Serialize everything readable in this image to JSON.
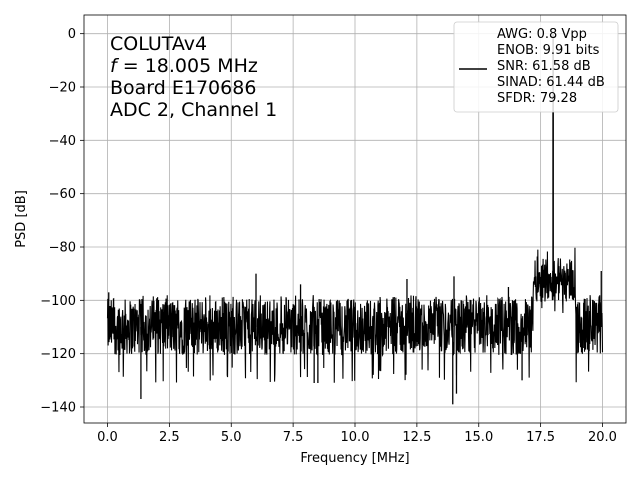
{
  "chart_data": {
    "type": "line",
    "xlabel": "Frequency [MHz]",
    "ylabel": "PSD [dB]",
    "xlim": [
      -0.95,
      20.95
    ],
    "ylim": [
      -146,
      7
    ],
    "x_ticks": [
      0.0,
      2.5,
      5.0,
      7.5,
      10.0,
      12.5,
      15.0,
      17.5,
      20.0
    ],
    "x_tick_labels": [
      "0.0",
      "2.5",
      "5.0",
      "7.5",
      "10.0",
      "12.5",
      "15.0",
      "17.5",
      "20.0"
    ],
    "y_ticks": [
      0,
      -20,
      -40,
      -60,
      -80,
      -100,
      -120,
      -140
    ],
    "y_tick_labels": [
      "0",
      "−20",
      "−40",
      "−60",
      "−80",
      "−100",
      "−120",
      "−140"
    ],
    "grid": true,
    "legend_position": "top-right",
    "series": [
      {
        "color": "#000000",
        "noise_floor_db": -110,
        "noise_band_db": [
          -125,
          -100
        ],
        "bump_range_mhz": [
          17.2,
          18.9
        ],
        "bump_level_db": -92,
        "peak": {
          "x": 18.005,
          "y": 0
        },
        "spurs": [
          {
            "x": 0.05,
            "y": -97
          },
          {
            "x": 6.0,
            "y": -90
          },
          {
            "x": 7.8,
            "y": -94
          },
          {
            "x": 8.35,
            "y": -131
          },
          {
            "x": 8.5,
            "y": -131
          },
          {
            "x": 12.1,
            "y": -92
          },
          {
            "x": 13.95,
            "y": -139
          },
          {
            "x": 14.0,
            "y": -91
          },
          {
            "x": 14.1,
            "y": -135
          },
          {
            "x": 16.2,
            "y": -95
          },
          {
            "x": 16.75,
            "y": -130
          },
          {
            "x": 19.95,
            "y": -89
          },
          {
            "x": 1.35,
            "y": -137
          }
        ]
      }
    ],
    "text_annotation": {
      "line1": "COLUTAv4",
      "line2_var": "f",
      "line2_rest": " = 18.005 MHz",
      "line3": "Board E170686",
      "line4": "ADC 2, Channel 1"
    },
    "legend": {
      "lines": [
        "AWG: 0.8 Vpp",
        "ENOB: 9.91 bits",
        "SNR: 61.58 dB",
        "SINAD: 61.44 dB",
        "SFDR: 79.28"
      ]
    }
  }
}
